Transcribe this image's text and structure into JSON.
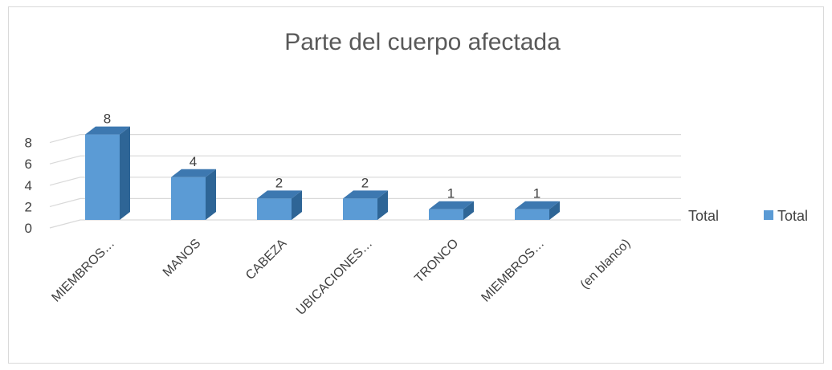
{
  "chart_data": {
    "type": "bar",
    "title": "Parte del cuerpo afectada",
    "categories": [
      "MIEMBROS…",
      "MANOS",
      "CABEZA",
      "UBICACIONES…",
      "TRONCO",
      "MIEMBROS…",
      "(en blanco)"
    ],
    "series": [
      {
        "name": "Total",
        "values": [
          8,
          4,
          2,
          2,
          1,
          1,
          null
        ]
      }
    ],
    "data_labels": [
      "8",
      "4",
      "2",
      "2",
      "1",
      "1",
      ""
    ],
    "y_ticks": [
      0,
      2,
      4,
      6,
      8
    ],
    "ylim": [
      0,
      8
    ],
    "series_axis_label": "Total",
    "grid": true,
    "legend": {
      "position": "right",
      "entries": [
        "Total"
      ]
    },
    "colors": {
      "bar_front": "#5b9bd5",
      "bar_side": "#2e6596",
      "bar_top": "#3d78b0"
    }
  }
}
